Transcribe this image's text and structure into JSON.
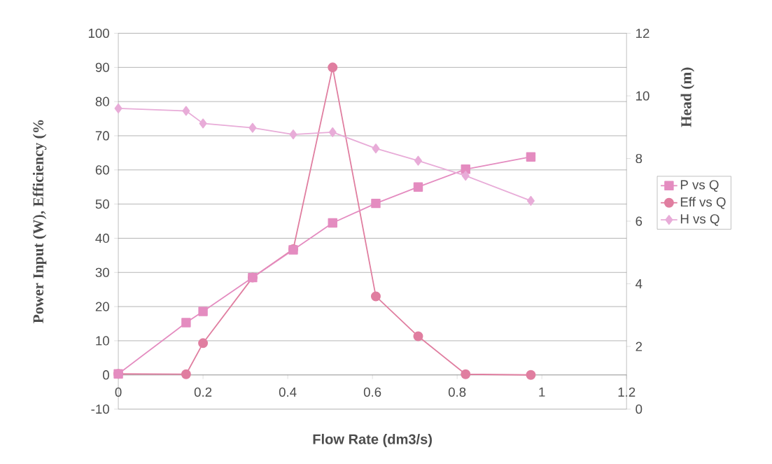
{
  "chart_data": {
    "type": "line",
    "xlabel": "Flow Rate (dm3/s)",
    "ylabel": "Power Input (W), Efficiency (%",
    "y2label": "Head (m)",
    "xlim": [
      0,
      1.2
    ],
    "xticks": [
      0,
      0.2,
      0.4,
      0.6,
      0.8,
      1,
      1.2
    ],
    "ylim": [
      -10,
      100
    ],
    "yticks": [
      -10,
      0,
      10,
      20,
      30,
      40,
      50,
      60,
      70,
      80,
      90,
      100
    ],
    "y2lim": [
      0,
      12
    ],
    "y2ticks": [
      0,
      2,
      4,
      6,
      8,
      10,
      12
    ],
    "grid": "y",
    "legend": "right",
    "series": [
      {
        "name": "P vs Q",
        "color": "#e48cc0",
        "marker": "square",
        "x": [
          0,
          0.16,
          0.2,
          0.317,
          0.413,
          0.506,
          0.608,
          0.708,
          0.82,
          0.974
        ],
        "values": [
          0.3,
          15.3,
          18.6,
          28.5,
          36.6,
          44.5,
          50.2,
          55,
          60.2,
          63.8
        ]
      },
      {
        "name": "Eff vs Q",
        "color": "#e07ea0",
        "marker": "circle",
        "x": [
          0,
          0.16,
          0.2,
          0.317,
          0.413,
          0.506,
          0.608,
          0.708,
          0.82,
          0.974
        ],
        "values": [
          0.3,
          0.2,
          9.3,
          28.5,
          36.8,
          90,
          23,
          11.3,
          0.2,
          0
        ]
      },
      {
        "name": "H vs Q",
        "color": "#e8acd8",
        "marker": "diamond",
        "axis": "y2",
        "x": [
          0,
          0.16,
          0.2,
          0.317,
          0.413,
          0.506,
          0.608,
          0.708,
          0.82,
          0.974
        ],
        "values": [
          9.6,
          9.52,
          9.12,
          8.98,
          8.77,
          8.84,
          8.32,
          7.93,
          7.45,
          6.65
        ]
      }
    ]
  }
}
